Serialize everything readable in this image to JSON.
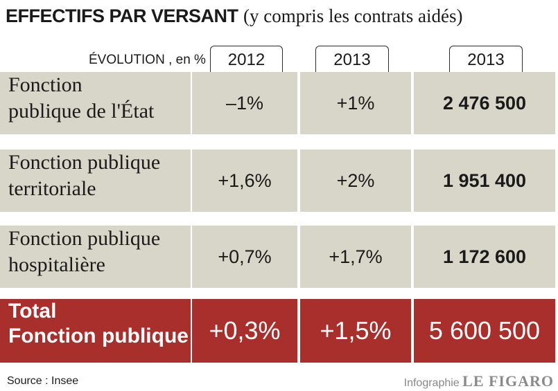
{
  "chart_data": {
    "type": "table",
    "title": "EFFECTIFS PAR VERSANT",
    "subtitle": "(y compris les contrats aidés)",
    "evolution_label": "ÉVOLUTION , en %",
    "columns": [
      "2012",
      "2013",
      "2013"
    ],
    "rows": [
      {
        "label_line1": "Fonction",
        "label_line2": "publique de l'État",
        "v2012": "–1%",
        "v2013": "+1%",
        "total": "2 476 500"
      },
      {
        "label_line1": "Fonction publique",
        "label_line2": "territoriale",
        "v2012": "+1,6%",
        "v2013": "+2%",
        "total": "1 951 400"
      },
      {
        "label_line1": "Fonction publique",
        "label_line2": "hospitalière",
        "v2012": "+0,7%",
        "v2013": "+1,7%",
        "total": "1 172 600"
      },
      {
        "label_line1": "Total",
        "label_line2": "Fonction publique",
        "v2012": "+0,3%",
        "v2013": "+1,5%",
        "total": "5 600 500"
      }
    ],
    "source": "Source : Insee",
    "credit": "Infographie",
    "brand": "LE FIGARO",
    "colors": {
      "row_bg": "#d8d6c8",
      "total_bg": "#a92f2d"
    }
  }
}
